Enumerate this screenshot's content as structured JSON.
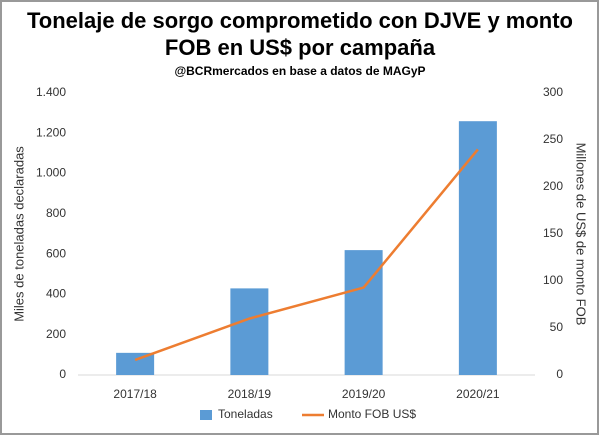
{
  "chart_data": {
    "type": "bar",
    "title": [
      "Tonelaje de sorgo comprometido con DJVE y monto",
      "FOB en US$ por campaña"
    ],
    "subtitle": "@BCRmercados en base a datos de MAGyP",
    "y_label": "Miles de toneladas declaradas",
    "y2_label": "Millones de US$ de monto FOB",
    "categories": [
      "2017/18",
      "2018/19",
      "2019/20",
      "2020/21"
    ],
    "series": [
      {
        "name": "Toneladas",
        "type": "bar",
        "color": "#5b9bd5",
        "values": [
          110,
          430,
          620,
          1260
        ]
      },
      {
        "name": "Monto FOB US$",
        "type": "line",
        "axis": "y2",
        "color": "#ed7d31",
        "values": [
          16,
          60,
          93,
          240
        ]
      }
    ],
    "ylim": [
      0,
      1400
    ],
    "yticks": [
      0,
      200,
      400,
      600,
      800,
      {
        "value": 1000,
        "label": "1.000"
      },
      {
        "value": 1200,
        "label": "1.200"
      },
      {
        "value": 1400,
        "label": "1.400"
      }
    ],
    "y2lim": [
      0,
      300
    ],
    "y2ticks": [
      0,
      50,
      100,
      150,
      200,
      250,
      300
    ],
    "legend": "bottom"
  }
}
